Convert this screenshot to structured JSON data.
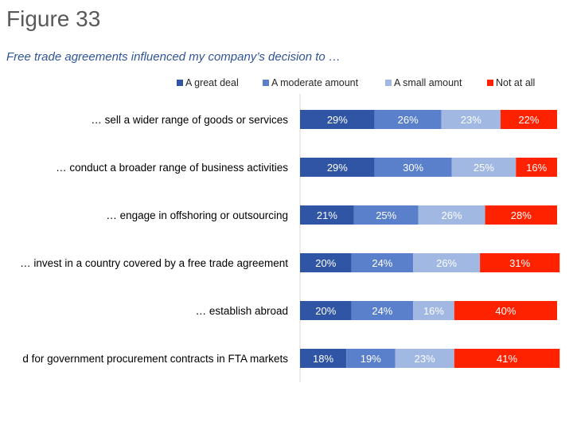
{
  "figure_label": "Figure 33",
  "chart_data": {
    "type": "bar",
    "orientation": "horizontal",
    "stacked": true,
    "title": "Free trade agreements influenced my company’s decision to …",
    "categories": [
      "… sell a wider range of goods or services",
      "… conduct a broader range of business activities",
      "… engage in offshoring or outsourcing",
      "… invest in a country covered by a free trade agreement",
      "… establish abroad",
      "d for government procurement contracts in FTA markets"
    ],
    "series": [
      {
        "name": "A great deal",
        "color": "#2F55A4",
        "values": [
          29,
          29,
          21,
          20,
          20,
          18
        ]
      },
      {
        "name": "A moderate amount",
        "color": "#5A80CC",
        "values": [
          26,
          30,
          25,
          24,
          24,
          19
        ]
      },
      {
        "name": "A small amount",
        "color": "#A1B8E2",
        "values": [
          23,
          25,
          26,
          26,
          16,
          23
        ]
      },
      {
        "name": "Not at all",
        "color": "#FF2200",
        "values": [
          22,
          16,
          28,
          31,
          40,
          41
        ]
      }
    ],
    "value_suffix": "%",
    "legend": "top",
    "grid": false
  }
}
